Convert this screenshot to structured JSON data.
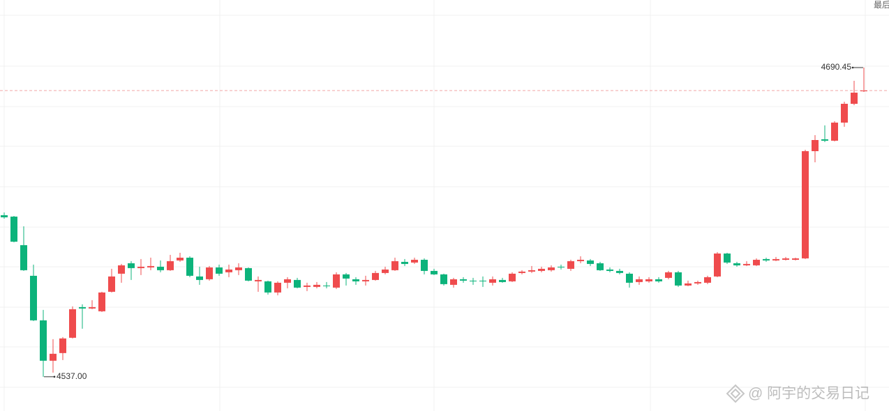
{
  "chart_data": {
    "type": "candlestick",
    "last_label": "最后",
    "high_label": "4690.45",
    "low_label": "4537.00",
    "watermark": "@ 阿宇的交易日记",
    "up_color": "#ef4b4d",
    "down_color": "#0cb37b",
    "ylim": [
      4520,
      4724
    ],
    "open": [
      4617.18,
      4616.49,
      4602.32,
      4587.11,
      4564.99,
      4544.95,
      4548.75,
      4556.35,
      4571.56,
      4570.87,
      4569.49,
      4579.17,
      4588.15,
      4593.33,
      4590.92,
      4591.26,
      4591.61,
      4589.88,
      4594.72,
      4596.1,
      4586.77,
      4585.39,
      4591.26,
      4588.84,
      4589.88,
      4590.92,
      4584.35,
      4584.35,
      4578.82,
      4583.66,
      4585.04,
      4581.59,
      4581.59,
      4582.28,
      4581.24,
      4587.81,
      4585.39,
      4584.35,
      4585.04,
      4588.5,
      4589.88,
      4594.02,
      4593.68,
      4595.06,
      4589.53,
      4587.81,
      4582.62,
      4585.39,
      4584.7,
      4584.7,
      4583.66,
      4585.04,
      4584.35,
      4588.5,
      4589.19,
      4589.53,
      4589.88,
      4591.61,
      4590.57,
      4594.37,
      4594.72,
      4593.33,
      4590.22,
      4589.53,
      4588.15,
      4584.0,
      4584.35,
      4585.39,
      4586.08,
      4588.84,
      4582.28,
      4583.31,
      4583.66,
      4586.77,
      4598.17,
      4593.33,
      4592.3,
      4592.3,
      4595.41,
      4594.72,
      4595.06,
      4595.06,
      4595.75,
      4648.97,
      4654.85,
      4654.16,
      4663.14,
      4672.48,
      4678.7
    ],
    "high": [
      4618.56,
      4616.83,
      4611.65,
      4592.64,
      4570.18,
      4555.66,
      4556.7,
      4571.91,
      4572.94,
      4575.02,
      4579.17,
      4590.57,
      4592.99,
      4594.37,
      4595.41,
      4596.1,
      4594.72,
      4597.48,
      4598.52,
      4596.79,
      4591.61,
      4591.95,
      4592.64,
      4592.64,
      4593.33,
      4591.26,
      4586.77,
      4584.7,
      4584.35,
      4586.42,
      4586.08,
      4583.66,
      4584.0,
      4584.0,
      4588.84,
      4588.5,
      4586.42,
      4587.11,
      4589.53,
      4591.61,
      4596.1,
      4595.41,
      4596.1,
      4595.75,
      4590.57,
      4588.15,
      4586.08,
      4586.42,
      4586.08,
      4586.77,
      4586.77,
      4586.08,
      4588.84,
      4589.88,
      4591.95,
      4591.61,
      4592.3,
      4592.64,
      4595.06,
      4596.79,
      4595.41,
      4594.02,
      4591.26,
      4590.57,
      4588.84,
      4586.77,
      4586.42,
      4586.42,
      4589.53,
      4589.53,
      4584.7,
      4584.7,
      4587.11,
      4598.86,
      4598.52,
      4594.02,
      4594.37,
      4595.75,
      4596.1,
      4596.44,
      4596.44,
      4596.1,
      4649.67,
      4656.92,
      4661.76,
      4663.84,
      4673.51,
      4683.88,
      4690.45
    ],
    "low": [
      4615.45,
      4603.7,
      4589.53,
      4564.65,
      4537.0,
      4539.08,
      4545.29,
      4556.01,
      4560.85,
      4570.53,
      4569.14,
      4578.82,
      4583.66,
      4585.04,
      4587.46,
      4589.88,
      4588.84,
      4589.53,
      4594.02,
      4586.42,
      4582.62,
      4584.7,
      4587.11,
      4586.42,
      4587.46,
      4584.35,
      4579.17,
      4577.78,
      4577.44,
      4580.9,
      4580.9,
      4579.51,
      4580.9,
      4580.9,
      4580.55,
      4582.28,
      4582.62,
      4582.28,
      4584.7,
      4587.81,
      4589.53,
      4591.95,
      4592.99,
      4587.81,
      4587.46,
      4582.28,
      4581.24,
      4583.66,
      4582.62,
      4581.59,
      4582.28,
      4583.66,
      4584.0,
      4587.81,
      4588.5,
      4588.84,
      4589.19,
      4590.22,
      4589.53,
      4593.33,
      4591.95,
      4589.53,
      4588.84,
      4587.81,
      4581.24,
      4582.62,
      4583.66,
      4583.66,
      4585.39,
      4581.59,
      4581.93,
      4582.62,
      4582.97,
      4586.42,
      4592.99,
      4591.61,
      4591.95,
      4591.95,
      4594.02,
      4594.37,
      4594.72,
      4594.72,
      4595.41,
      4643.45,
      4653.47,
      4653.81,
      4661.07,
      4671.78,
      4678.35
    ],
    "close": [
      4616.14,
      4604.05,
      4589.88,
      4564.99,
      4544.95,
      4548.4,
      4556.01,
      4570.53,
      4570.87,
      4571.56,
      4578.82,
      4586.77,
      4592.3,
      4590.92,
      4591.61,
      4591.95,
      4589.88,
      4594.37,
      4596.1,
      4587.11,
      4585.04,
      4591.26,
      4588.15,
      4590.22,
      4591.26,
      4584.7,
      4585.04,
      4578.82,
      4583.66,
      4585.39,
      4581.24,
      4582.28,
      4582.62,
      4581.93,
      4587.81,
      4585.73,
      4584.35,
      4585.04,
      4588.5,
      4590.22,
      4594.37,
      4592.99,
      4595.06,
      4589.53,
      4587.81,
      4582.97,
      4585.39,
      4584.7,
      4584.35,
      4584.35,
      4585.39,
      4584.0,
      4588.15,
      4589.19,
      4589.88,
      4590.57,
      4591.26,
      4591.26,
      4594.37,
      4595.06,
      4592.99,
      4589.88,
      4589.53,
      4588.5,
      4583.66,
      4585.39,
      4585.39,
      4584.35,
      4588.84,
      4582.28,
      4583.31,
      4584.0,
      4586.42,
      4598.17,
      4593.68,
      4592.3,
      4592.99,
      4595.06,
      4594.72,
      4595.41,
      4595.75,
      4595.75,
      4648.97,
      4654.5,
      4654.16,
      4663.14,
      4672.48,
      4678.01,
      4679.04
    ]
  }
}
